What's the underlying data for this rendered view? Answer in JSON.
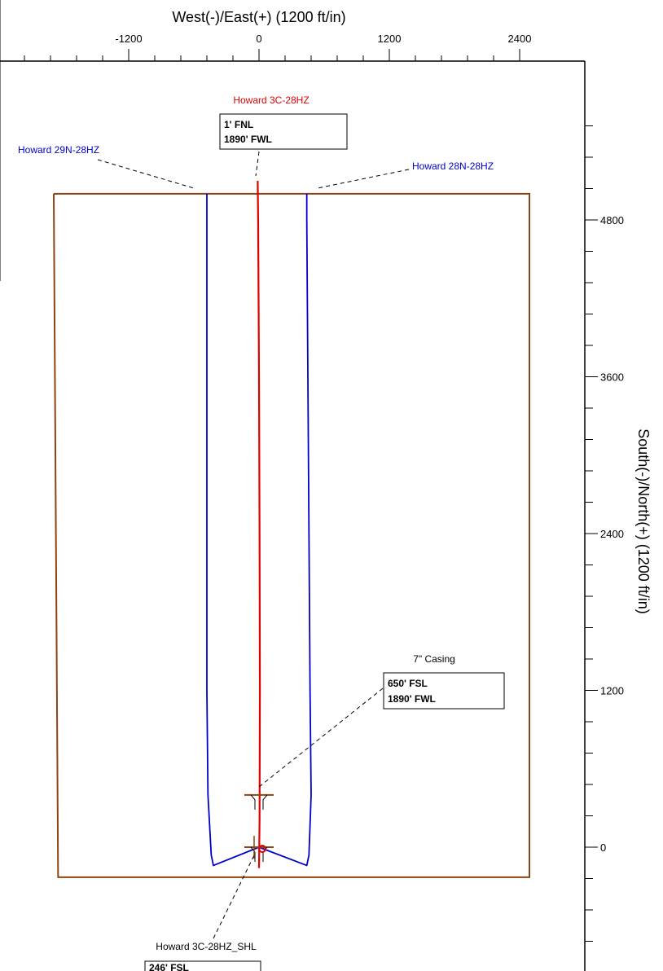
{
  "chart_data": {
    "type": "line",
    "title": "",
    "xlabel": "West(-)/East(+) (1200 ft/in)",
    "ylabel": "South(-)/North(+) (1200 ft/in)",
    "xlim": [
      -1950,
      2500
    ],
    "ylim": [
      -900,
      5700
    ],
    "x_ticks": [
      -1200,
      0,
      1200,
      2400
    ],
    "y_ticks": [
      0,
      1200,
      2400,
      3600,
      4800
    ],
    "x_tick_labels": [
      "-1200",
      "0",
      "1200",
      "2400"
    ],
    "y_tick_labels": [
      "0",
      "1200",
      "2400",
      "3600",
      "4800"
    ],
    "section_boundary": {
      "color": "#8B4513",
      "points": [
        [
          -1890,
          5000
        ],
        [
          2490,
          5000
        ],
        [
          2490,
          -230
        ],
        [
          -1850,
          -230
        ],
        [
          -1890,
          5000
        ]
      ]
    },
    "series": [
      {
        "name": "Howard 3C-28HZ",
        "color": "#e00000",
        "points": [
          [
            0,
            -160
          ],
          [
            5,
            200
          ],
          [
            8,
            1200
          ],
          [
            5,
            2400
          ],
          [
            0,
            3600
          ],
          [
            -8,
            4800
          ],
          [
            -12,
            5100
          ]
        ]
      },
      {
        "name": "Howard 29N-28HZ",
        "color": "#0000cc",
        "points": [
          [
            0,
            0
          ],
          [
            -420,
            -140
          ],
          [
            -440,
            -60
          ],
          [
            -470,
            400
          ],
          [
            -480,
            1200
          ],
          [
            -480,
            2400
          ],
          [
            -480,
            3600
          ],
          [
            -480,
            4800
          ],
          [
            -480,
            5000
          ]
        ]
      },
      {
        "name": "Howard 28N-28HZ",
        "color": "#0000cc",
        "points": [
          [
            0,
            0
          ],
          [
            440,
            -140
          ],
          [
            460,
            -60
          ],
          [
            480,
            400
          ],
          [
            470,
            1200
          ],
          [
            460,
            2400
          ],
          [
            450,
            3600
          ],
          [
            440,
            4800
          ],
          [
            440,
            5000
          ]
        ]
      }
    ],
    "markers": [
      {
        "name": "7\" Casing",
        "x": 0,
        "y": 400
      },
      {
        "name": "Howard 3C-28HZ_SHL",
        "x": 0,
        "y": 0
      }
    ],
    "annotations": [
      {
        "label": "Howard 3C-28HZ",
        "color": "#e00000",
        "box_lines": [
          "1' FNL",
          "1890' FWL"
        ]
      },
      {
        "label": "Howard 29N-28HZ",
        "color": "#0000cc",
        "box_lines": []
      },
      {
        "label": "Howard 28N-28HZ",
        "color": "#0000cc",
        "box_lines": []
      },
      {
        "label": "7\" Casing",
        "color": "#000000",
        "box_lines": [
          "650' FSL",
          "1890' FWL"
        ]
      },
      {
        "label": "Howard 3C-28HZ_SHL",
        "color": "#000000",
        "box_lines": [
          "246' FSL"
        ]
      }
    ],
    "grid": false,
    "legend": "none"
  }
}
